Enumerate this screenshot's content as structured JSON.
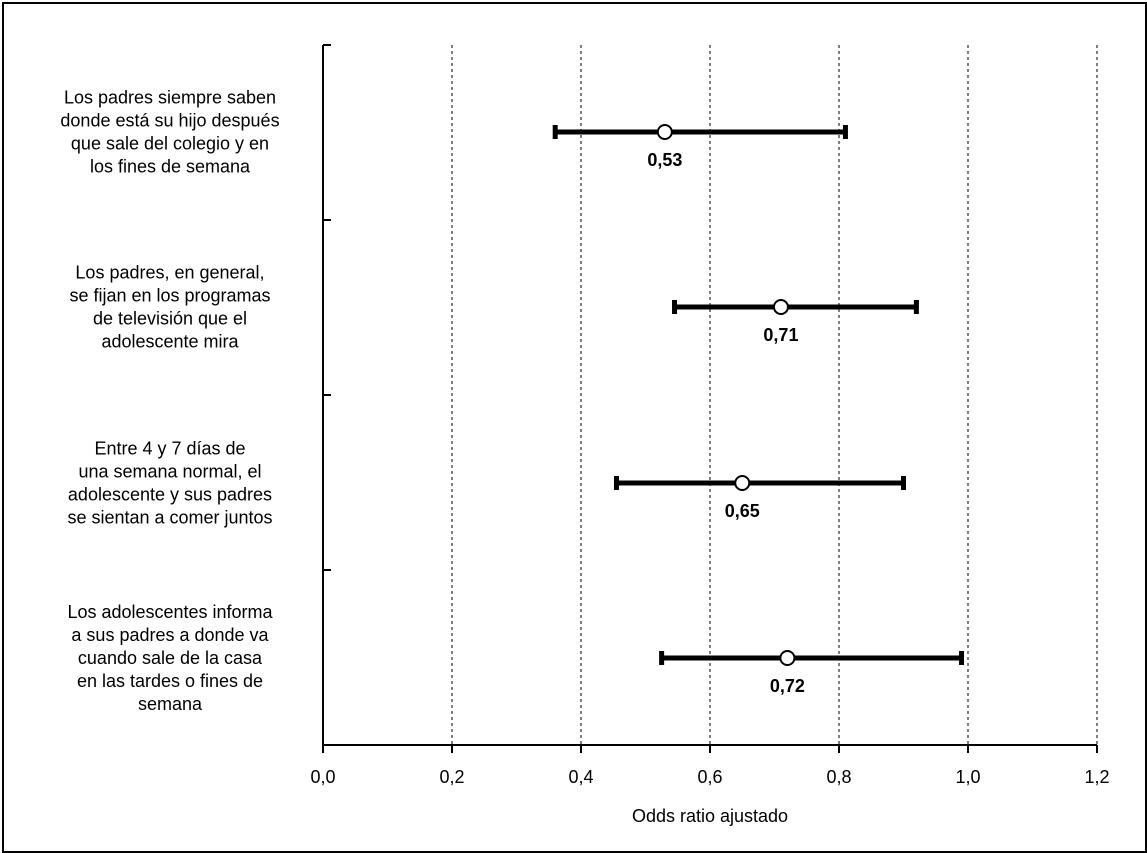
{
  "chart_data": {
    "type": "forest",
    "xlabel": "Odds ratio ajustado",
    "xlim": [
      0.0,
      1.2
    ],
    "x_ticks": [
      0.0,
      0.2,
      0.4,
      0.6,
      0.8,
      1.0,
      1.2
    ],
    "x_tick_labels": [
      "0,0",
      "0,2",
      "0,4",
      "0,6",
      "0,8",
      "1,0",
      "1,2"
    ],
    "grid": "vertical dashed",
    "categories": [
      {
        "label_lines": [
          "Los padres siempre saben",
          "donde está su hijo después",
          "que sale del colegio y en",
          "los fines de semana"
        ],
        "estimate": 0.53,
        "ci_low": 0.36,
        "ci_high": 0.81,
        "value_label": "0,53"
      },
      {
        "label_lines": [
          "Los padres, en general,",
          "se fijan en los programas",
          "de televisión que el",
          "adolescente mira"
        ],
        "estimate": 0.71,
        "ci_low": 0.545,
        "ci_high": 0.92,
        "value_label": "0,71"
      },
      {
        "label_lines": [
          "Entre 4 y 7 días de",
          "una semana normal, el",
          "adolescente y sus padres",
          "se sientan a comer juntos"
        ],
        "estimate": 0.65,
        "ci_low": 0.455,
        "ci_high": 0.9,
        "value_label": "0,65"
      },
      {
        "label_lines": [
          "Los adolescentes informa",
          "a sus padres a donde va",
          "cuando sale de la casa",
          "en las tardes o fines de",
          "semana"
        ],
        "estimate": 0.72,
        "ci_low": 0.525,
        "ci_high": 0.99,
        "value_label": "0,72"
      }
    ]
  }
}
